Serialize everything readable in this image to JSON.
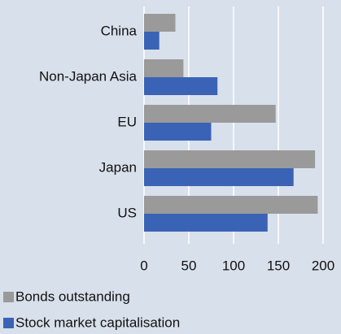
{
  "chart_data": {
    "type": "bar",
    "orientation": "horizontal",
    "categories": [
      "China",
      "Non-Japan Asia",
      "EU",
      "Japan",
      "US"
    ],
    "series": [
      {
        "name": "Bonds outstanding",
        "color": "#9a9a9a",
        "values": [
          35,
          44,
          147,
          191,
          194
        ]
      },
      {
        "name": "Stock market capitalisation",
        "color": "#3a63b5",
        "values": [
          17,
          82,
          75,
          167,
          138
        ]
      }
    ],
    "xlim": [
      0,
      200
    ],
    "xticks": [
      0,
      50,
      100,
      150,
      200
    ],
    "grid": true,
    "legend": "bottom"
  }
}
